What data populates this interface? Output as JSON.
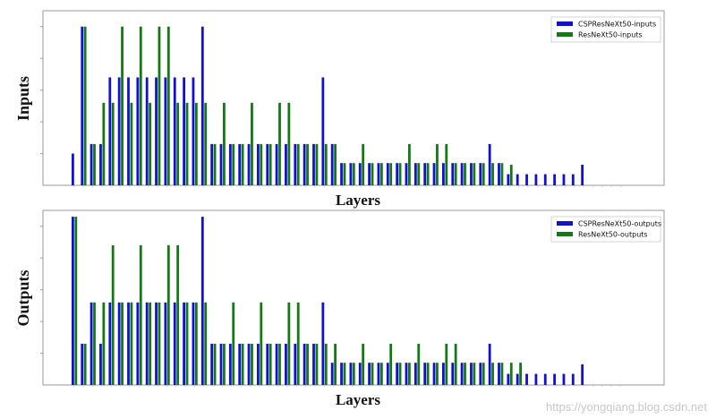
{
  "watermark": "https://yongqiang.blog.csdn.net",
  "colors": {
    "csp": "#1010d8",
    "res": "#117a11"
  },
  "chart_data": [
    {
      "type": "bar",
      "ylabel": "Inputs",
      "xlabel": "Layers",
      "ylim": [
        0,
        5.5
      ],
      "legend_position": "top-right",
      "series": [
        {
          "name": "CSPResNeXt50-inputs",
          "values": [
            1,
            5,
            1.3,
            1.3,
            3.4,
            3.4,
            3.4,
            3.4,
            3.4,
            3.4,
            3.4,
            3.4,
            3.4,
            3.4,
            5,
            1.3,
            1.3,
            1.3,
            1.3,
            1.3,
            1.3,
            1.3,
            1.3,
            1.3,
            1.3,
            1.3,
            1.3,
            3.4,
            1.3,
            0.7,
            0.7,
            0.7,
            0.7,
            0.7,
            0.7,
            0.7,
            0.7,
            0.7,
            0.7,
            0.7,
            0.7,
            0.7,
            0.7,
            0.7,
            0.7,
            1.3,
            0.7,
            0.35,
            0.35,
            0.35,
            0.35,
            0.35,
            0.35,
            0.35,
            0.35,
            0.65,
            0,
            0,
            0,
            0
          ]
        },
        {
          "name": "ResNeXt50-inputs",
          "values": [
            0,
            5,
            1.3,
            2.6,
            2.6,
            5,
            2.6,
            5,
            2.6,
            5,
            5,
            2.6,
            2.6,
            2.6,
            2.6,
            1.3,
            2.6,
            1.3,
            1.3,
            2.6,
            1.3,
            1.3,
            2.6,
            2.6,
            1.3,
            1.3,
            1.3,
            1.3,
            1.3,
            0.7,
            0.7,
            1.3,
            0.7,
            0.7,
            0.7,
            0.7,
            1.3,
            0.7,
            0.7,
            1.3,
            1.3,
            0.7,
            0.7,
            0.7,
            0.7,
            0.7,
            0.7,
            0.65,
            0,
            0,
            0,
            0,
            0,
            0,
            0,
            0,
            0,
            0,
            0,
            0
          ]
        }
      ]
    },
    {
      "type": "bar",
      "ylabel": "Outputs",
      "xlabel": "Layers",
      "ylim": [
        0,
        5.5
      ],
      "legend_position": "top-right",
      "series": [
        {
          "name": "CSPResNeXt50-outputs",
          "values": [
            5.3,
            1.3,
            2.6,
            1.3,
            2.6,
            2.6,
            2.6,
            2.6,
            2.6,
            2.6,
            2.6,
            2.6,
            2.6,
            2.6,
            5.3,
            1.3,
            1.3,
            1.3,
            1.3,
            1.3,
            1.3,
            1.3,
            1.3,
            1.3,
            1.3,
            1.3,
            1.3,
            2.6,
            0.7,
            0.7,
            0.7,
            0.7,
            0.7,
            0.7,
            0.7,
            0.7,
            0.7,
            0.7,
            0.7,
            0.7,
            0.7,
            0.7,
            0.7,
            0.7,
            0.7,
            1.3,
            0.7,
            0.35,
            0.35,
            0.35,
            0.35,
            0.35,
            0.35,
            0.35,
            0.35,
            0.65,
            0,
            0,
            0,
            0
          ]
        },
        {
          "name": "ResNeXt50-outputs",
          "values": [
            5.3,
            1.3,
            2.6,
            2.6,
            4.4,
            2.6,
            2.6,
            4.4,
            2.6,
            2.6,
            4.4,
            4.4,
            2.6,
            2.6,
            2.6,
            1.3,
            1.3,
            2.6,
            1.3,
            1.3,
            2.6,
            1.3,
            1.3,
            2.6,
            2.6,
            1.3,
            1.3,
            1.3,
            1.3,
            0.7,
            0.7,
            1.3,
            0.7,
            0.7,
            1.3,
            0.7,
            0.7,
            1.3,
            0.7,
            0.7,
            1.3,
            1.3,
            0.7,
            0.7,
            0.7,
            0.7,
            0.7,
            0.7,
            0.7,
            0,
            0,
            0,
            0,
            0,
            0,
            0,
            0,
            0,
            0,
            0
          ]
        }
      ]
    }
  ]
}
